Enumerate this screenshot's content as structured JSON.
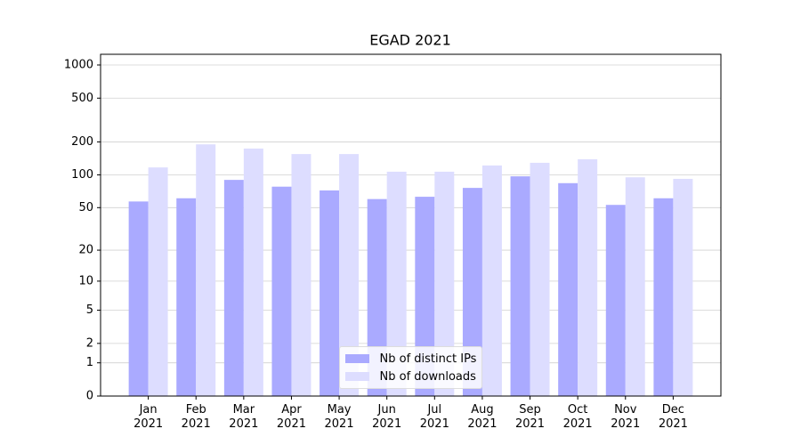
{
  "chart_data": {
    "type": "bar",
    "title": "EGAD 2021",
    "categories": [
      "Jan\n2021",
      "Feb\n2021",
      "Mar\n2021",
      "Apr\n2021",
      "May\n2021",
      "Jun\n2021",
      "Jul\n2021",
      "Aug\n2021",
      "Sep\n2021",
      "Oct\n2021",
      "Nov\n2021",
      "Dec\n2021"
    ],
    "series": [
      {
        "name": "Nb of distinct IPs",
        "color": "#aaaaff",
        "values": [
          57,
          61,
          90,
          78,
          72,
          60,
          63,
          76,
          97,
          84,
          53,
          61
        ]
      },
      {
        "name": "Nb of downloads",
        "color": "#ddddff",
        "values": [
          117,
          190,
          174,
          155,
          155,
          107,
          107,
          122,
          129,
          139,
          95,
          92
        ]
      }
    ],
    "yscale": "log1p",
    "ylim": [
      0,
      1250
    ],
    "yticks": [
      0,
      1,
      2,
      5,
      10,
      20,
      50,
      100,
      200,
      500,
      1000
    ],
    "grid": true,
    "legend": "lower center"
  }
}
